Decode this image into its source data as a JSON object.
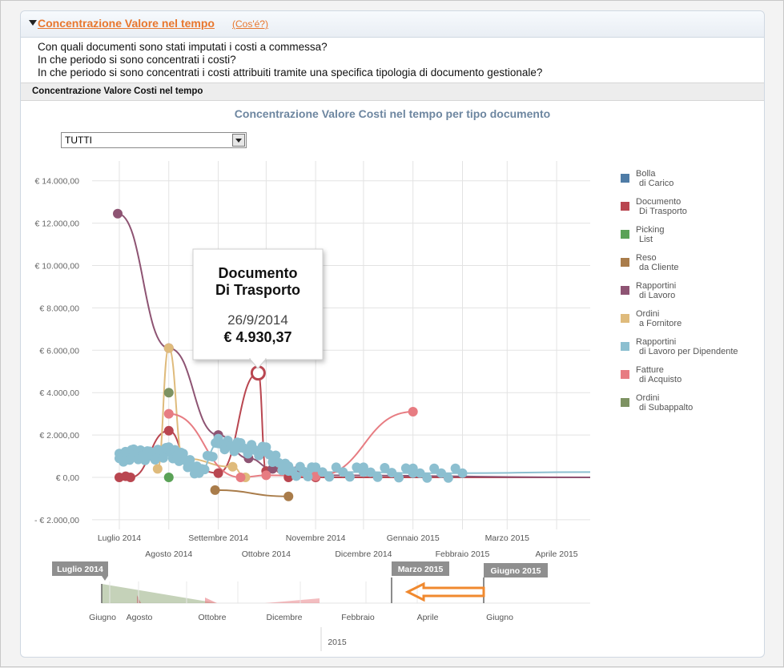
{
  "header": {
    "title": "Concentrazione Valore nel tempo",
    "help_link": "(Cos'é?)"
  },
  "questions": [
    "Con quali documenti sono stati imputati i costi a commessa?",
    "In che periodo si sono concentrati i costi?",
    "In che periodo si sono concentrati i costi attribuiti tramite una specifica tipologia di documento gestionale?"
  ],
  "section_title": "Concentrazione Valore Costi nel tempo",
  "filter": {
    "selected": "TUTTI"
  },
  "tooltip": {
    "series_line1": "Documento",
    "series_line2": "Di Trasporto",
    "date": "26/9/2014",
    "value": "€ 4.930,37"
  },
  "navigator": {
    "year_label": "2015",
    "labels": [
      "Giugno",
      "Agosto",
      "Ottobre",
      "Dicembre",
      "Febbraio",
      "Aprile",
      "Giugno"
    ],
    "range_badges": [
      "Luglio 2014",
      "Marzo 2015",
      "Giugno 2015"
    ]
  },
  "colors": {
    "accent": "#e8772e",
    "title": "#6d86a0",
    "arrow": "#f0892f"
  },
  "chart_data": {
    "type": "line",
    "title": "Concentrazione Valore Costi nel tempo per tipo documento",
    "x_tick_labels": [
      "Luglio 2014",
      "Agosto 2014",
      "Settembre 2014",
      "Ottobre 2014",
      "Novembre 2014",
      "Dicembre 2014",
      "Gennaio 2015",
      "Febbraio 2015",
      "Marzo 2015",
      "Aprile 2015"
    ],
    "y_tick_labels": [
      "€ 14.000,00",
      "€ 12.000,00",
      "€ 10.000,00",
      "€ 8.000,00",
      "€ 6.000,00",
      "€ 4.000,00",
      "€ 2.000,00",
      "€ 0,00",
      "- € 2.000,00"
    ],
    "ylim": [
      -2000,
      14000
    ],
    "grid": true,
    "legend_position": "right",
    "series": [
      {
        "name": "Bolla di Carico",
        "color": "#4f7ca6",
        "x": [],
        "y": []
      },
      {
        "name": "Documento Di Trasporto",
        "color": "#b94650",
        "x": [
          "2014-07-01",
          "2014-07-05",
          "2014-07-08",
          "2014-08-01",
          "2014-08-15",
          "2014-09-01",
          "2014-09-26",
          "2014-10-01",
          "2014-10-10",
          "2014-10-15",
          "2014-11-01",
          "2015-04-30"
        ],
        "y": [
          0,
          50,
          0,
          2200,
          500,
          200,
          4930,
          300,
          400,
          0,
          0,
          0
        ]
      },
      {
        "name": "Picking List",
        "color": "#5aa257",
        "x": [
          "2014-08-01"
        ],
        "y": [
          0
        ]
      },
      {
        "name": "Reso da Cliente",
        "color": "#a97c4a",
        "x": [
          "2014-08-30",
          "2014-10-15"
        ],
        "y": [
          -600,
          -900
        ]
      },
      {
        "name": "Rapportini di Lavoro",
        "color": "#8e5473",
        "x": [
          "2014-06-30",
          "2014-08-01",
          "2014-09-01",
          "2014-09-20",
          "2014-10-05",
          "2014-10-20",
          "2014-11-01",
          "2015-04-30"
        ],
        "y": [
          12450,
          6100,
          2000,
          900,
          400,
          300,
          100,
          0
        ]
      },
      {
        "name": "Ordini a Fornitore",
        "color": "#dfbb7c",
        "x": [
          "2014-07-25",
          "2014-08-01",
          "2014-08-10",
          "2014-09-10",
          "2014-09-18"
        ],
        "y": [
          400,
          6100,
          900,
          500,
          0
        ]
      },
      {
        "name": "Rapportini di Lavoro per Dipendente",
        "color": "#8cbfd0",
        "x": [
          "2014-07-01",
          "2014-07-10",
          "2014-07-20",
          "2014-08-01",
          "2014-08-10",
          "2014-08-20",
          "2014-09-01",
          "2014-09-15",
          "2014-10-01",
          "2014-10-15",
          "2014-11-01",
          "2014-12-01",
          "2015-01-01",
          "2015-02-01",
          "2015-04-30"
        ],
        "y": [
          900,
          1100,
          1000,
          1200,
          900,
          200,
          1600,
          1400,
          1200,
          300,
          250,
          250,
          200,
          200,
          250
        ]
      },
      {
        "name": "Fatture di Acquisto",
        "color": "#e77c82",
        "x": [
          "2014-08-01",
          "2014-09-15",
          "2014-10-01",
          "2014-11-01",
          "2015-01-01"
        ],
        "y": [
          3000,
          0,
          100,
          50,
          3100
        ]
      },
      {
        "name": "Ordini di Subappalto",
        "color": "#7d9262",
        "x": [
          "2014-08-01"
        ],
        "y": [
          4000
        ]
      }
    ]
  }
}
